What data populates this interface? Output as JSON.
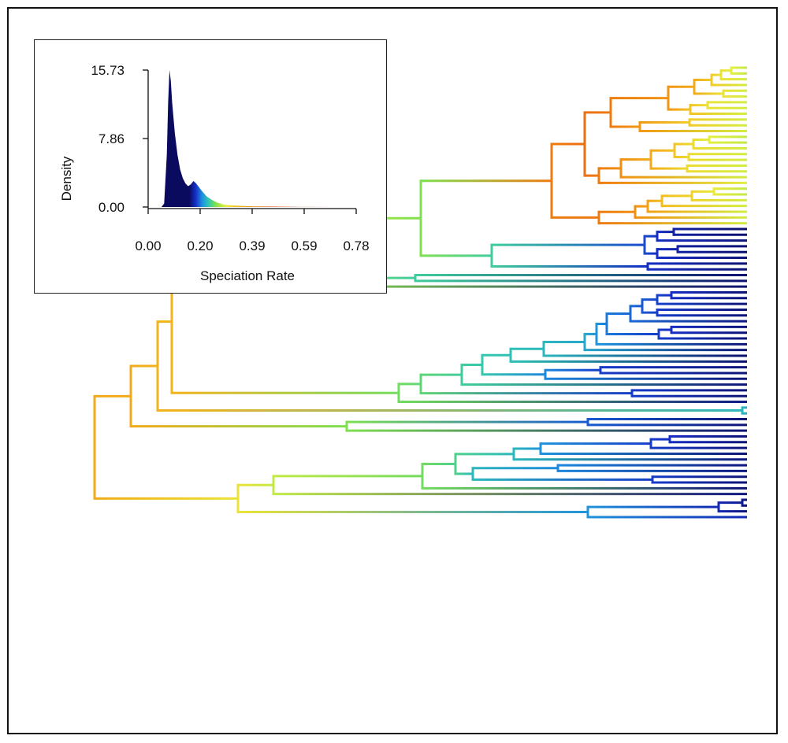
{
  "chart_data": [
    {
      "type": "area",
      "description_role": "inset density of speciation rate",
      "xlabel": "Speciation Rate",
      "ylabel": "Density",
      "xlim": [
        0.0,
        0.78
      ],
      "ylim": [
        0.0,
        15.73
      ],
      "x_tick_labels": [
        "0.00",
        "0.20",
        "0.39",
        "0.59",
        "0.78"
      ],
      "y_tick_labels": [
        "0.00",
        "7.86",
        "15.73"
      ],
      "x": [
        0.0,
        0.05,
        0.06,
        0.07,
        0.075,
        0.08,
        0.085,
        0.09,
        0.1,
        0.11,
        0.12,
        0.13,
        0.14,
        0.15,
        0.16,
        0.17,
        0.18,
        0.19,
        0.2,
        0.22,
        0.24,
        0.26,
        0.28,
        0.3,
        0.35,
        0.4,
        0.5,
        0.6,
        0.7,
        0.78
      ],
      "y": [
        0.0,
        0.0,
        0.4,
        6.0,
        12.0,
        15.73,
        14.5,
        12.0,
        8.5,
        6.0,
        4.3,
        3.3,
        2.7,
        2.4,
        2.6,
        3.0,
        2.7,
        2.3,
        1.9,
        1.2,
        0.8,
        0.5,
        0.3,
        0.22,
        0.12,
        0.07,
        0.03,
        0.01,
        0.0,
        0.0
      ],
      "color_scale": [
        "#0a0a5e",
        "#1530c8",
        "#1e90e0",
        "#30c8b0",
        "#7ee050",
        "#e8f040",
        "#f4c020",
        "#f08a10",
        "#e8400c"
      ]
    },
    {
      "type": "diagram",
      "description_role": "phylogenetic tree with branches colored by speciation rate"
    }
  ]
}
